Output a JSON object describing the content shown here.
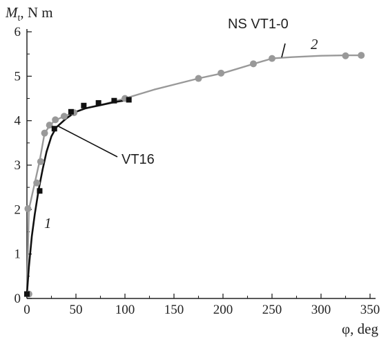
{
  "chart_data": {
    "type": "line",
    "ylabel_main": "M",
    "ylabel_sub": "t",
    "ylabel_unit": ", N m",
    "xlabel": "φ, deg",
    "xlim": [
      0,
      350
    ],
    "ylim": [
      0,
      6
    ],
    "x_ticks": [
      0,
      50,
      100,
      150,
      200,
      250,
      300,
      350
    ],
    "y_ticks": [
      0,
      1,
      2,
      3,
      4,
      5,
      6
    ],
    "grid": false,
    "legend": "none",
    "series": [
      {
        "id": "1",
        "color": "#111111",
        "marker": "square",
        "curve": [
          [
            0,
            0.1
          ],
          [
            2,
            0.7
          ],
          [
            5,
            1.4
          ],
          [
            8,
            1.9
          ],
          [
            12,
            2.45
          ],
          [
            16,
            2.9
          ],
          [
            20,
            3.3
          ],
          [
            25,
            3.65
          ],
          [
            30,
            3.85
          ],
          [
            40,
            4.05
          ],
          [
            50,
            4.2
          ],
          [
            60,
            4.28
          ],
          [
            75,
            4.35
          ],
          [
            90,
            4.42
          ],
          [
            105,
            4.47
          ]
        ],
        "points": [
          [
            0,
            0.1
          ],
          [
            13,
            2.42
          ],
          [
            28,
            3.82
          ],
          [
            45,
            4.2
          ],
          [
            58,
            4.34
          ],
          [
            73,
            4.4
          ],
          [
            89,
            4.45
          ],
          [
            104,
            4.47
          ]
        ]
      },
      {
        "id": "2",
        "color": "#999999",
        "marker": "circle",
        "curve": [
          [
            0,
            0.1
          ],
          [
            1,
            1.0
          ],
          [
            2,
            2.0
          ],
          [
            5,
            2.3
          ],
          [
            8,
            2.6
          ],
          [
            13,
            3.1
          ],
          [
            18,
            3.72
          ],
          [
            23,
            3.88
          ],
          [
            28,
            4.0
          ],
          [
            38,
            4.1
          ],
          [
            48,
            4.18
          ],
          [
            60,
            4.28
          ],
          [
            80,
            4.38
          ],
          [
            100,
            4.5
          ],
          [
            130,
            4.7
          ],
          [
            175,
            4.95
          ],
          [
            200,
            5.07
          ],
          [
            230,
            5.27
          ],
          [
            250,
            5.4
          ],
          [
            270,
            5.43
          ],
          [
            300,
            5.46
          ],
          [
            325,
            5.47
          ],
          [
            340,
            5.47
          ]
        ],
        "points": [
          [
            2,
            0.1
          ],
          [
            1,
            2.02
          ],
          [
            10,
            2.6
          ],
          [
            14,
            3.08
          ],
          [
            18,
            3.72
          ],
          [
            23,
            3.9
          ],
          [
            29,
            4.02
          ],
          [
            38,
            4.1
          ],
          [
            48,
            4.18
          ],
          [
            100,
            4.5
          ],
          [
            175,
            4.95
          ],
          [
            198,
            5.07
          ],
          [
            231,
            5.28
          ],
          [
            250,
            5.4
          ],
          [
            325,
            5.46
          ],
          [
            341,
            5.47
          ]
        ]
      }
    ],
    "annotations": [
      {
        "text": "NS VT1-0",
        "target": [
          262,
          5.42
        ]
      },
      {
        "text": "VT16",
        "target": [
          29,
          3.8
        ]
      },
      {
        "text": "1",
        "target": [
          12,
          1.5
        ]
      },
      {
        "text": "2",
        "target": [
          285,
          5.5
        ]
      }
    ]
  }
}
